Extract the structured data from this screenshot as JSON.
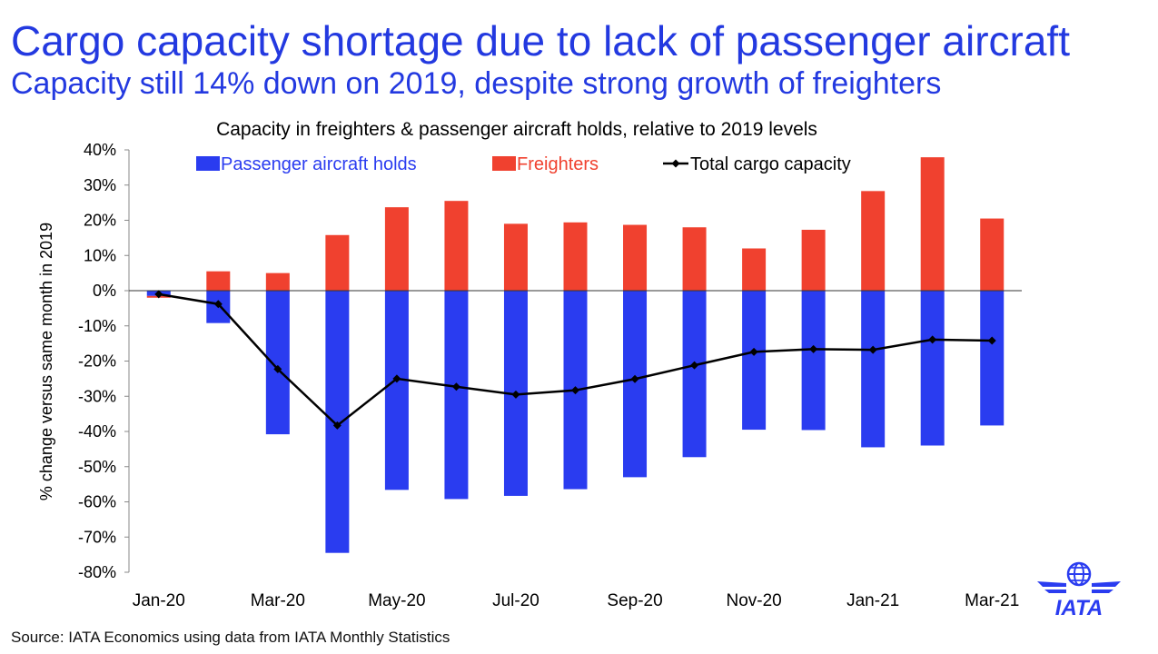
{
  "title": "Cargo capacity shortage due to lack of passenger aircraft",
  "subtitle": "Capacity still 14% down on 2019, despite strong growth of freighters",
  "source": "Source: IATA Economics using data from IATA Monthly Statistics",
  "logo_text": "IATA",
  "colors": {
    "title": "#2339e0",
    "passenger": "#2a3cf0",
    "freighters": "#f0412f",
    "total": "#000000"
  },
  "chart_data": {
    "type": "bar",
    "title": "Capacity in freighters & passenger aircraft holds, relative to 2019 levels",
    "ylabel": "% change versus same month in 2019",
    "xlabel": "",
    "ylim": [
      -80,
      40
    ],
    "yticks": [
      "40%",
      "30%",
      "20%",
      "10%",
      "0%",
      "-10%",
      "-20%",
      "-30%",
      "-40%",
      "-50%",
      "-60%",
      "-70%",
      "-80%"
    ],
    "categories": [
      "Jan-20",
      "Feb-20",
      "Mar-20",
      "Apr-20",
      "May-20",
      "Jun-20",
      "Jul-20",
      "Aug-20",
      "Sep-20",
      "Oct-20",
      "Nov-20",
      "Dec-20",
      "Jan-21",
      "Feb-21",
      "Mar-21"
    ],
    "xtick_labels": [
      "Jan-20",
      "",
      "Mar-20",
      "",
      "May-20",
      "",
      "Jul-20",
      "",
      "Sep-20",
      "",
      "Nov-20",
      "",
      "Jan-21",
      "",
      "Mar-21"
    ],
    "legend_position": "top",
    "series": [
      {
        "name": "Passenger aircraft holds",
        "kind": "bar",
        "values": [
          -1.5,
          -9.2,
          -40.8,
          -74.5,
          -56.6,
          -59.2,
          -58.3,
          -56.4,
          -53.0,
          -47.3,
          -39.5,
          -39.6,
          -44.5,
          -44.0,
          -38.3
        ]
      },
      {
        "name": "Freighters",
        "kind": "bar",
        "values": [
          -0.5,
          5.5,
          5.0,
          15.8,
          23.7,
          25.5,
          19.0,
          19.4,
          18.7,
          18.0,
          12.0,
          17.3,
          28.3,
          37.9,
          20.5
        ]
      },
      {
        "name": "Total cargo capacity",
        "kind": "line",
        "values": [
          -1.0,
          -3.8,
          -22.3,
          -38.3,
          -25.0,
          -27.3,
          -29.5,
          -28.3,
          -25.1,
          -21.2,
          -17.4,
          -16.6,
          -16.8,
          -13.9,
          -14.2
        ]
      }
    ]
  }
}
